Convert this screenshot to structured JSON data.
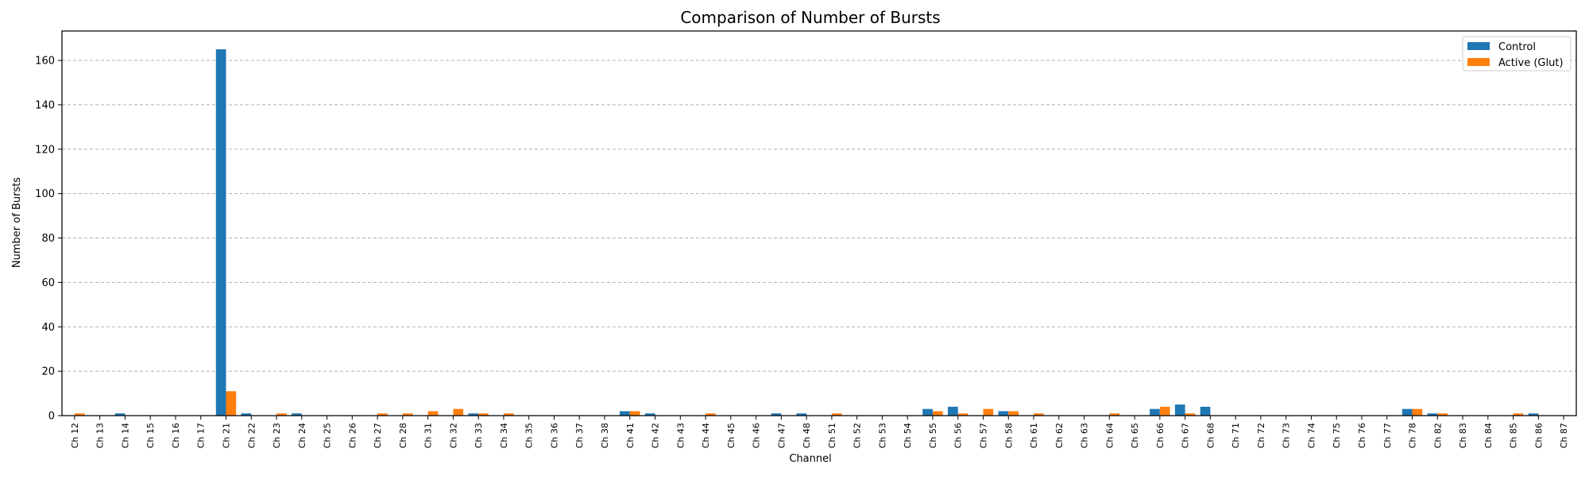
{
  "chart_data": {
    "type": "bar",
    "title": "Comparison of Number of Bursts",
    "xlabel": "Channel",
    "ylabel": "Number of Bursts",
    "ylim": [
      0,
      173.25
    ],
    "yticks": [
      0,
      20,
      40,
      60,
      80,
      100,
      120,
      140,
      160
    ],
    "grid": "y-dashed",
    "legend_position": "top-right",
    "categories": [
      "Ch 12",
      "Ch 13",
      "Ch 14",
      "Ch 15",
      "Ch 16",
      "Ch 17",
      "Ch 21",
      "Ch 22",
      "Ch 23",
      "Ch 24",
      "Ch 25",
      "Ch 26",
      "Ch 27",
      "Ch 28",
      "Ch 31",
      "Ch 32",
      "Ch 33",
      "Ch 34",
      "Ch 35",
      "Ch 36",
      "Ch 37",
      "Ch 38",
      "Ch 41",
      "Ch 42",
      "Ch 43",
      "Ch 44",
      "Ch 45",
      "Ch 46",
      "Ch 47",
      "Ch 48",
      "Ch 51",
      "Ch 52",
      "Ch 53",
      "Ch 54",
      "Ch 55",
      "Ch 56",
      "Ch 57",
      "Ch 58",
      "Ch 61",
      "Ch 62",
      "Ch 63",
      "Ch 64",
      "Ch 65",
      "Ch 66",
      "Ch 67",
      "Ch 68",
      "Ch 71",
      "Ch 72",
      "Ch 73",
      "Ch 74",
      "Ch 75",
      "Ch 76",
      "Ch 77",
      "Ch 78",
      "Ch 82",
      "Ch 83",
      "Ch 84",
      "Ch 85",
      "Ch 86",
      "Ch 87"
    ],
    "series": [
      {
        "name": "Control",
        "color": "#1f77b4",
        "values": [
          0,
          0,
          1,
          0,
          0,
          0,
          165,
          1,
          0,
          1,
          0,
          0,
          0,
          0,
          0,
          0,
          1,
          0,
          0,
          0,
          0,
          0,
          2,
          1,
          0,
          0,
          0,
          0,
          1,
          1,
          0,
          0,
          0,
          0,
          3,
          4,
          0,
          2,
          0,
          0,
          0,
          0,
          0,
          3,
          5,
          4,
          0,
          0,
          0,
          0,
          0,
          0,
          0,
          3,
          1,
          0,
          0,
          0,
          1,
          0
        ]
      },
      {
        "name": "Active (Glut)",
        "color": "#ff7f0e",
        "values": [
          1,
          0,
          0,
          0,
          0,
          0,
          11,
          0,
          1,
          0,
          0,
          0,
          1,
          1,
          2,
          3,
          1,
          1,
          0,
          0,
          0,
          0,
          2,
          0,
          0,
          1,
          0,
          0,
          0,
          0,
          1,
          0,
          0,
          0,
          2,
          1,
          3,
          2,
          1,
          0,
          0,
          1,
          0,
          4,
          1,
          0,
          0,
          0,
          0,
          0,
          0,
          0,
          0,
          3,
          1,
          0,
          0,
          1,
          0,
          0
        ]
      }
    ]
  }
}
